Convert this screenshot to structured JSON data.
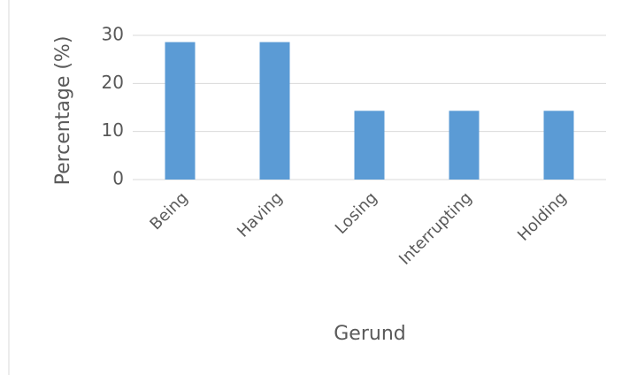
{
  "chart_data": {
    "type": "bar",
    "x_label": "Gerund",
    "y_label": "Percentage (%)",
    "categories": [
      "Being",
      "Having",
      "Losing",
      "Interrupting",
      "Holding"
    ],
    "values": [
      28.6,
      28.6,
      14.3,
      14.3,
      14.3
    ],
    "color": "#5b9bd5",
    "ylim": [
      0,
      30
    ],
    "yticks": [
      0,
      10,
      20,
      30
    ],
    "grid": true
  }
}
